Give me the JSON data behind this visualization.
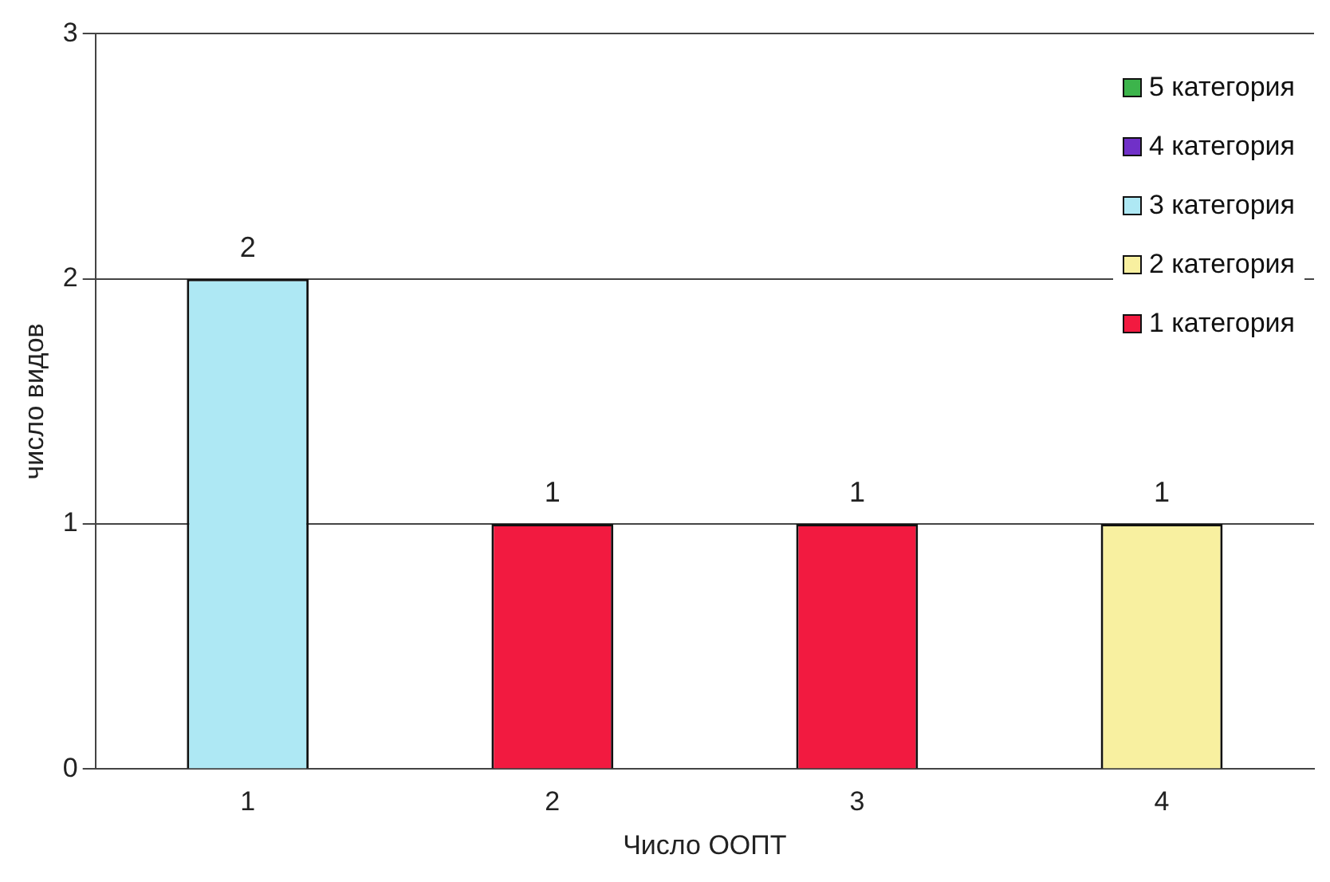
{
  "chart_data": {
    "type": "bar",
    "stacked": true,
    "xlabel": "Число ООПТ",
    "ylabel": "число видов",
    "categories": [
      "1",
      "2",
      "3",
      "4"
    ],
    "series": [
      {
        "name": "1 категория",
        "color": "#f21a40",
        "values": [
          0,
          1,
          1,
          0
        ]
      },
      {
        "name": "2 категория",
        "color": "#f8f0a0",
        "values": [
          0,
          0,
          0,
          1
        ]
      },
      {
        "name": "3 категория",
        "color": "#aee8f4",
        "values": [
          2,
          0,
          0,
          0
        ]
      },
      {
        "name": "4 категория",
        "color": "#7030c8",
        "values": [
          0,
          0,
          0,
          0
        ]
      },
      {
        "name": "5 категория",
        "color": "#3cb44b",
        "values": [
          0,
          0,
          0,
          0
        ]
      }
    ],
    "totals": [
      "2",
      "1",
      "1",
      "1"
    ],
    "ylim": [
      0,
      3
    ],
    "yticks": [
      0,
      1,
      2,
      3
    ],
    "grid": "y",
    "legend": "top right"
  }
}
